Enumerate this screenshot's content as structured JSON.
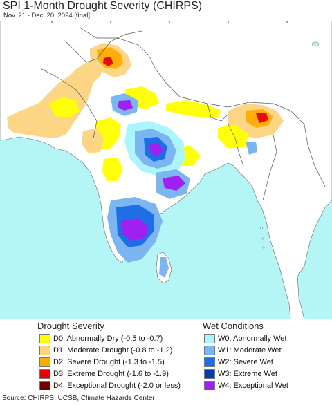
{
  "title": "SPI 1-Month Drought Severity (CHIRPS)",
  "subtitle": "Nov. 21 - Dec. 20, 2024 [final]",
  "source": "Source: CHIRPS, UCSB, Climate Hazards Center",
  "legend": {
    "drought_heading": "Drought Severity",
    "wet_heading": "Wet Conditions",
    "drought": [
      {
        "label": "D0: Abnormally Dry (-0.5 to -0.7)",
        "color": "#ffff00"
      },
      {
        "label": "D1: Moderate Drought (-0.8 to -1.2)",
        "color": "#fcd37f"
      },
      {
        "label": "D2: Severe Drought (-1.3 to -1.5)",
        "color": "#ffaa00"
      },
      {
        "label": "D3: Extreme Drought (-1.6 to -1.9)",
        "color": "#e60000"
      },
      {
        "label": "D4: Exceptional Drought (-2.0 or less)",
        "color": "#730000"
      }
    ],
    "wet": [
      {
        "label": "W0: Abnormally Wet",
        "color": "#aaf5ff"
      },
      {
        "label": "W1: Moderate Wet",
        "color": "#7bb6f0"
      },
      {
        "label": "W2: Severe Wet",
        "color": "#1e6fe6"
      },
      {
        "label": "W3: Extreme Wet",
        "color": "#0a3ca8"
      },
      {
        "label": "W4: Exceptional Wet",
        "color": "#a020f0"
      }
    ]
  },
  "map_colors": {
    "ocean": "#b4f5f5",
    "land": "#ffffff",
    "border": "#555555"
  }
}
